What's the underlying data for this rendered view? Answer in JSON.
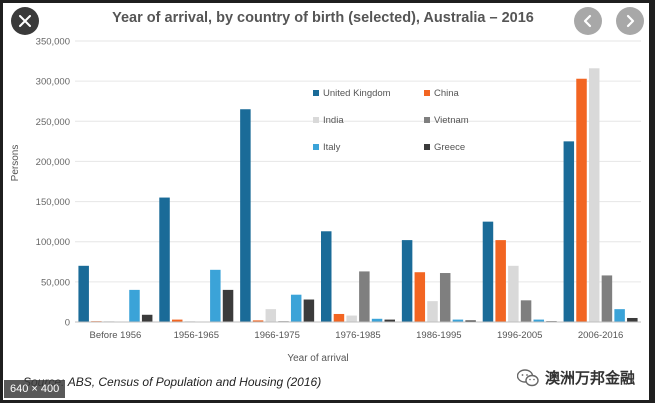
{
  "viewer": {
    "size_badge": "640 × 400",
    "close_icon": "close-icon",
    "prev_icon": "chevron-left-icon",
    "next_icon": "chevron-right-icon"
  },
  "source": {
    "label": "Source:",
    "text": "ABS, Census of Population and Housing (2016)"
  },
  "watermark": {
    "text": "澳洲万邦金融",
    "icon": "wechat-icon"
  },
  "chart_data": {
    "type": "bar",
    "title": "Year of arrival, by country of birth (selected), Australia – 2016",
    "xlabel": "Year of arrival",
    "ylabel": "Persons",
    "ylim": [
      0,
      350000
    ],
    "yticks": [
      0,
      50000,
      100000,
      150000,
      200000,
      250000,
      300000,
      350000
    ],
    "ytick_labels": [
      "0",
      "50,000",
      "100,000",
      "150,000",
      "200,000",
      "250,000",
      "300,000",
      "350,000"
    ],
    "grid": true,
    "legend_position": "upper-center",
    "categories": [
      "Before 1956",
      "1956-1965",
      "1966-1975",
      "1976-1985",
      "1986-1995",
      "1996-2005",
      "2006-2016"
    ],
    "series": [
      {
        "name": "United Kingdom",
        "color": "#1a6b98",
        "values": [
          70000,
          155000,
          265000,
          113000,
          102000,
          125000,
          225000
        ]
      },
      {
        "name": "China",
        "color": "#f26522",
        "values": [
          1000,
          3000,
          2000,
          10000,
          62000,
          102000,
          303000
        ]
      },
      {
        "name": "India",
        "color": "#d9d9d9",
        "values": [
          1000,
          1000,
          16000,
          8000,
          26000,
          70000,
          316000
        ]
      },
      {
        "name": "Vietnam",
        "color": "#7f7f7f",
        "values": [
          500,
          500,
          1000,
          63000,
          61000,
          27000,
          58000
        ]
      },
      {
        "name": "Italy",
        "color": "#3ba3d8",
        "values": [
          40000,
          65000,
          34000,
          4000,
          3000,
          3000,
          16000
        ]
      },
      {
        "name": "Greece",
        "color": "#3b3b3b",
        "values": [
          9000,
          40000,
          28000,
          3000,
          2000,
          1000,
          5000
        ]
      }
    ]
  }
}
